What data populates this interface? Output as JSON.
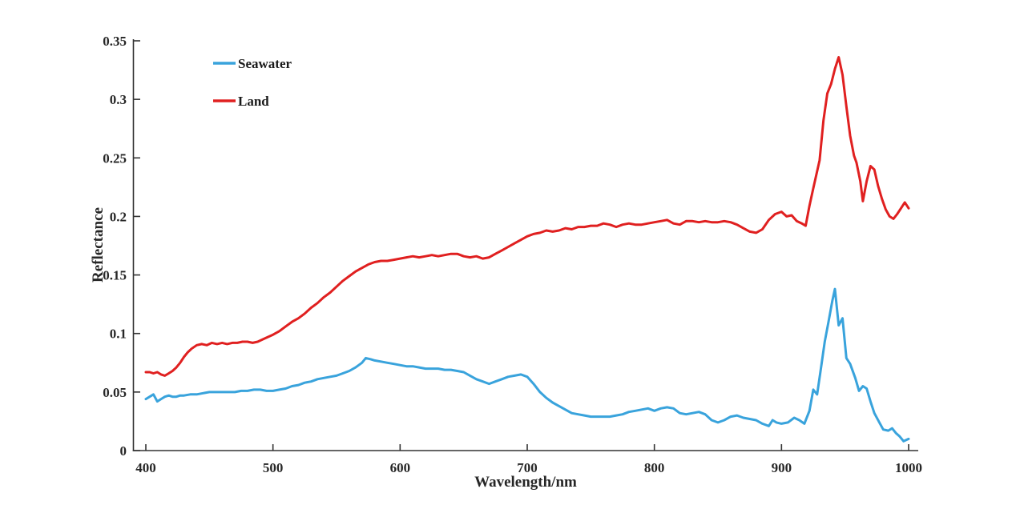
{
  "chart_data": {
    "type": "line",
    "title": "",
    "xlabel": "Wavelength/nm",
    "ylabel": "Reflectance",
    "xlim": [
      400,
      1000
    ],
    "ylim": [
      0,
      0.35
    ],
    "x_ticks": [
      400,
      500,
      600,
      700,
      800,
      900,
      1000
    ],
    "x_tick_labels": [
      "400",
      "500",
      "600",
      "700",
      "800",
      "900",
      "1000"
    ],
    "y_ticks": [
      0,
      0.05,
      0.1,
      0.15,
      0.2,
      0.25,
      0.3,
      0.35
    ],
    "y_tick_labels": [
      "0",
      "0.05",
      "0.1",
      "0.15",
      "0.2",
      "0.25",
      "0.3",
      "0.35"
    ],
    "grid": false,
    "legend_position": "top-left-inside",
    "axis_color": "#333333",
    "series": [
      {
        "name": "Seawater",
        "color": "#39A3DC",
        "points": [
          [
            400,
            0.044
          ],
          [
            403,
            0.046
          ],
          [
            406,
            0.048
          ],
          [
            409,
            0.042
          ],
          [
            412,
            0.044
          ],
          [
            415,
            0.046
          ],
          [
            418,
            0.047
          ],
          [
            421,
            0.046
          ],
          [
            424,
            0.046
          ],
          [
            427,
            0.047
          ],
          [
            430,
            0.047
          ],
          [
            435,
            0.048
          ],
          [
            440,
            0.048
          ],
          [
            445,
            0.049
          ],
          [
            450,
            0.05
          ],
          [
            455,
            0.05
          ],
          [
            460,
            0.05
          ],
          [
            465,
            0.05
          ],
          [
            470,
            0.05
          ],
          [
            475,
            0.051
          ],
          [
            480,
            0.051
          ],
          [
            485,
            0.052
          ],
          [
            490,
            0.052
          ],
          [
            495,
            0.051
          ],
          [
            500,
            0.051
          ],
          [
            505,
            0.052
          ],
          [
            510,
            0.053
          ],
          [
            515,
            0.055
          ],
          [
            520,
            0.056
          ],
          [
            525,
            0.058
          ],
          [
            530,
            0.059
          ],
          [
            535,
            0.061
          ],
          [
            540,
            0.062
          ],
          [
            545,
            0.063
          ],
          [
            550,
            0.064
          ],
          [
            555,
            0.066
          ],
          [
            560,
            0.068
          ],
          [
            565,
            0.071
          ],
          [
            570,
            0.075
          ],
          [
            573,
            0.079
          ],
          [
            577,
            0.078
          ],
          [
            580,
            0.077
          ],
          [
            585,
            0.076
          ],
          [
            590,
            0.075
          ],
          [
            595,
            0.074
          ],
          [
            600,
            0.073
          ],
          [
            605,
            0.072
          ],
          [
            610,
            0.072
          ],
          [
            615,
            0.071
          ],
          [
            620,
            0.07
          ],
          [
            625,
            0.07
          ],
          [
            630,
            0.07
          ],
          [
            635,
            0.069
          ],
          [
            640,
            0.069
          ],
          [
            645,
            0.068
          ],
          [
            650,
            0.067
          ],
          [
            655,
            0.064
          ],
          [
            660,
            0.061
          ],
          [
            665,
            0.059
          ],
          [
            670,
            0.057
          ],
          [
            675,
            0.059
          ],
          [
            680,
            0.061
          ],
          [
            685,
            0.063
          ],
          [
            690,
            0.064
          ],
          [
            695,
            0.065
          ],
          [
            700,
            0.063
          ],
          [
            705,
            0.057
          ],
          [
            710,
            0.05
          ],
          [
            715,
            0.045
          ],
          [
            720,
            0.041
          ],
          [
            725,
            0.038
          ],
          [
            730,
            0.035
          ],
          [
            735,
            0.032
          ],
          [
            740,
            0.031
          ],
          [
            745,
            0.03
          ],
          [
            750,
            0.029
          ],
          [
            755,
            0.029
          ],
          [
            760,
            0.029
          ],
          [
            765,
            0.029
          ],
          [
            770,
            0.03
          ],
          [
            775,
            0.031
          ],
          [
            780,
            0.033
          ],
          [
            785,
            0.034
          ],
          [
            790,
            0.035
          ],
          [
            795,
            0.036
          ],
          [
            800,
            0.034
          ],
          [
            805,
            0.036
          ],
          [
            810,
            0.037
          ],
          [
            815,
            0.036
          ],
          [
            820,
            0.032
          ],
          [
            825,
            0.031
          ],
          [
            830,
            0.032
          ],
          [
            835,
            0.033
          ],
          [
            840,
            0.031
          ],
          [
            845,
            0.026
          ],
          [
            850,
            0.024
          ],
          [
            855,
            0.026
          ],
          [
            860,
            0.029
          ],
          [
            865,
            0.03
          ],
          [
            870,
            0.028
          ],
          [
            875,
            0.027
          ],
          [
            880,
            0.026
          ],
          [
            885,
            0.023
          ],
          [
            890,
            0.021
          ],
          [
            893,
            0.026
          ],
          [
            896,
            0.024
          ],
          [
            900,
            0.023
          ],
          [
            905,
            0.024
          ],
          [
            910,
            0.028
          ],
          [
            914,
            0.026
          ],
          [
            918,
            0.023
          ],
          [
            922,
            0.034
          ],
          [
            925,
            0.052
          ],
          [
            928,
            0.048
          ],
          [
            931,
            0.07
          ],
          [
            934,
            0.093
          ],
          [
            937,
            0.11
          ],
          [
            940,
            0.128
          ],
          [
            942,
            0.138
          ],
          [
            945,
            0.107
          ],
          [
            948,
            0.113
          ],
          [
            951,
            0.079
          ],
          [
            954,
            0.074
          ],
          [
            958,
            0.062
          ],
          [
            961,
            0.051
          ],
          [
            964,
            0.055
          ],
          [
            967,
            0.053
          ],
          [
            970,
            0.042
          ],
          [
            973,
            0.032
          ],
          [
            977,
            0.024
          ],
          [
            980,
            0.018
          ],
          [
            984,
            0.017
          ],
          [
            987,
            0.019
          ],
          [
            990,
            0.015
          ],
          [
            993,
            0.012
          ],
          [
            996,
            0.008
          ],
          [
            1000,
            0.01
          ]
        ]
      },
      {
        "name": "Land",
        "color": "#E02020",
        "points": [
          [
            400,
            0.067
          ],
          [
            403,
            0.067
          ],
          [
            406,
            0.066
          ],
          [
            409,
            0.067
          ],
          [
            412,
            0.065
          ],
          [
            415,
            0.064
          ],
          [
            418,
            0.066
          ],
          [
            421,
            0.068
          ],
          [
            424,
            0.071
          ],
          [
            427,
            0.075
          ],
          [
            430,
            0.08
          ],
          [
            433,
            0.084
          ],
          [
            436,
            0.087
          ],
          [
            440,
            0.09
          ],
          [
            444,
            0.091
          ],
          [
            448,
            0.09
          ],
          [
            452,
            0.092
          ],
          [
            456,
            0.091
          ],
          [
            460,
            0.092
          ],
          [
            464,
            0.091
          ],
          [
            468,
            0.092
          ],
          [
            472,
            0.092
          ],
          [
            476,
            0.093
          ],
          [
            480,
            0.093
          ],
          [
            484,
            0.092
          ],
          [
            488,
            0.093
          ],
          [
            492,
            0.095
          ],
          [
            496,
            0.097
          ],
          [
            500,
            0.099
          ],
          [
            505,
            0.102
          ],
          [
            510,
            0.106
          ],
          [
            515,
            0.11
          ],
          [
            520,
            0.113
          ],
          [
            525,
            0.117
          ],
          [
            530,
            0.122
          ],
          [
            535,
            0.126
          ],
          [
            540,
            0.131
          ],
          [
            545,
            0.135
          ],
          [
            550,
            0.14
          ],
          [
            555,
            0.145
          ],
          [
            560,
            0.149
          ],
          [
            565,
            0.153
          ],
          [
            570,
            0.156
          ],
          [
            575,
            0.159
          ],
          [
            580,
            0.161
          ],
          [
            585,
            0.162
          ],
          [
            590,
            0.162
          ],
          [
            595,
            0.163
          ],
          [
            600,
            0.164
          ],
          [
            605,
            0.165
          ],
          [
            610,
            0.166
          ],
          [
            615,
            0.165
          ],
          [
            620,
            0.166
          ],
          [
            625,
            0.167
          ],
          [
            630,
            0.166
          ],
          [
            635,
            0.167
          ],
          [
            640,
            0.168
          ],
          [
            645,
            0.168
          ],
          [
            650,
            0.166
          ],
          [
            655,
            0.165
          ],
          [
            660,
            0.166
          ],
          [
            665,
            0.164
          ],
          [
            670,
            0.165
          ],
          [
            675,
            0.168
          ],
          [
            680,
            0.171
          ],
          [
            685,
            0.174
          ],
          [
            690,
            0.177
          ],
          [
            695,
            0.18
          ],
          [
            700,
            0.183
          ],
          [
            705,
            0.185
          ],
          [
            710,
            0.186
          ],
          [
            715,
            0.188
          ],
          [
            720,
            0.187
          ],
          [
            725,
            0.188
          ],
          [
            730,
            0.19
          ],
          [
            735,
            0.189
          ],
          [
            740,
            0.191
          ],
          [
            745,
            0.191
          ],
          [
            750,
            0.192
          ],
          [
            755,
            0.192
          ],
          [
            760,
            0.194
          ],
          [
            765,
            0.193
          ],
          [
            770,
            0.191
          ],
          [
            775,
            0.193
          ],
          [
            780,
            0.194
          ],
          [
            785,
            0.193
          ],
          [
            790,
            0.193
          ],
          [
            795,
            0.194
          ],
          [
            800,
            0.195
          ],
          [
            805,
            0.196
          ],
          [
            810,
            0.197
          ],
          [
            815,
            0.194
          ],
          [
            820,
            0.193
          ],
          [
            825,
            0.196
          ],
          [
            830,
            0.196
          ],
          [
            835,
            0.195
          ],
          [
            840,
            0.196
          ],
          [
            845,
            0.195
          ],
          [
            850,
            0.195
          ],
          [
            855,
            0.196
          ],
          [
            860,
            0.195
          ],
          [
            865,
            0.193
          ],
          [
            870,
            0.19
          ],
          [
            875,
            0.187
          ],
          [
            880,
            0.186
          ],
          [
            885,
            0.189
          ],
          [
            890,
            0.197
          ],
          [
            895,
            0.202
          ],
          [
            900,
            0.204
          ],
          [
            904,
            0.2
          ],
          [
            908,
            0.201
          ],
          [
            912,
            0.196
          ],
          [
            916,
            0.194
          ],
          [
            919,
            0.192
          ],
          [
            922,
            0.209
          ],
          [
            925,
            0.224
          ],
          [
            930,
            0.248
          ],
          [
            933,
            0.282
          ],
          [
            936,
            0.305
          ],
          [
            939,
            0.313
          ],
          [
            942,
            0.326
          ],
          [
            945,
            0.336
          ],
          [
            948,
            0.321
          ],
          [
            951,
            0.294
          ],
          [
            954,
            0.269
          ],
          [
            957,
            0.252
          ],
          [
            959,
            0.246
          ],
          [
            962,
            0.23
          ],
          [
            964,
            0.213
          ],
          [
            967,
            0.23
          ],
          [
            970,
            0.243
          ],
          [
            973,
            0.24
          ],
          [
            976,
            0.226
          ],
          [
            979,
            0.215
          ],
          [
            982,
            0.206
          ],
          [
            985,
            0.2
          ],
          [
            988,
            0.198
          ],
          [
            991,
            0.202
          ],
          [
            994,
            0.207
          ],
          [
            997,
            0.212
          ],
          [
            1000,
            0.207
          ]
        ]
      }
    ]
  }
}
